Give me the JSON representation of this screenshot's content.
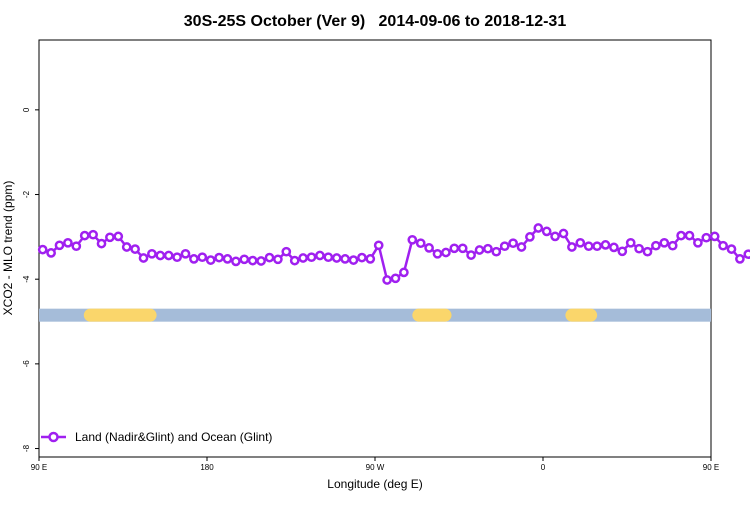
{
  "chart_data": {
    "type": "line",
    "title": "30S-25S October (Ver 9)   2014-09-06 to 2018-12-31",
    "xlabel": "Longitude (deg E)",
    "ylabel": "XCO2 - MLO trend (ppm)",
    "x_range": [
      90,
      450
    ],
    "y_range": [
      -8.2,
      1.65
    ],
    "x_ticks": [
      {
        "value": 90,
        "label": "90 E"
      },
      {
        "value": 180,
        "label": "180"
      },
      {
        "value": 270,
        "label": "90 W"
      },
      {
        "value": 360,
        "label": "0"
      },
      {
        "value": 450,
        "label": "90 E"
      },
      {
        "value": 540,
        "label": "180"
      }
    ],
    "x_ticks_note": "second 90 E occurs at data value 450",
    "y_ticks": [
      {
        "value": 0,
        "label": "0"
      },
      {
        "value": -2,
        "label": "-2"
      },
      {
        "value": -4,
        "label": "-4"
      },
      {
        "value": -6,
        "label": "-6"
      },
      {
        "value": -8,
        "label": "-8"
      }
    ],
    "legend": {
      "position": "bottom-left",
      "label": "Land (Nadir&Glint) and Ocean (Glint)"
    },
    "colors": {
      "series": "#a020f0",
      "ocean": "#a5bcd9",
      "land": "#fad66b"
    },
    "surface_band": {
      "y_value": -4.85,
      "land_segments": [
        [
          114,
          153
        ],
        [
          290,
          311
        ],
        [
          372,
          389
        ],
        [
          491,
          531
        ]
      ]
    },
    "series": [
      {
        "name": "Land (Nadir&Glint) and Ocean (Glint)",
        "points": [
          [
            92.0,
            -3.3
          ],
          [
            96.5,
            -3.38
          ],
          [
            101.0,
            -3.2
          ],
          [
            105.5,
            -3.14
          ],
          [
            110.0,
            -3.22
          ],
          [
            114.5,
            -2.97
          ],
          [
            119.0,
            -2.95
          ],
          [
            123.5,
            -3.16
          ],
          [
            128.0,
            -3.01
          ],
          [
            132.5,
            -2.99
          ],
          [
            137.0,
            -3.24
          ],
          [
            141.5,
            -3.29
          ],
          [
            146.0,
            -3.5
          ],
          [
            150.5,
            -3.4
          ],
          [
            155.0,
            -3.44
          ],
          [
            159.5,
            -3.44
          ],
          [
            164.0,
            -3.48
          ],
          [
            168.5,
            -3.4
          ],
          [
            173.0,
            -3.52
          ],
          [
            177.5,
            -3.48
          ],
          [
            182.0,
            -3.55
          ],
          [
            186.5,
            -3.49
          ],
          [
            191.0,
            -3.52
          ],
          [
            195.5,
            -3.58
          ],
          [
            200.0,
            -3.53
          ],
          [
            204.5,
            -3.56
          ],
          [
            209.0,
            -3.57
          ],
          [
            213.5,
            -3.49
          ],
          [
            218.0,
            -3.53
          ],
          [
            222.5,
            -3.35
          ],
          [
            227.0,
            -3.56
          ],
          [
            231.5,
            -3.5
          ],
          [
            236.0,
            -3.48
          ],
          [
            240.5,
            -3.44
          ],
          [
            245.0,
            -3.48
          ],
          [
            249.5,
            -3.5
          ],
          [
            254.0,
            -3.52
          ],
          [
            258.5,
            -3.55
          ],
          [
            263.0,
            -3.49
          ],
          [
            267.5,
            -3.52
          ],
          [
            272.0,
            -3.2
          ],
          [
            276.5,
            -4.02
          ],
          [
            281.0,
            -3.98
          ],
          [
            285.5,
            -3.84
          ],
          [
            290.0,
            -3.07
          ],
          [
            294.5,
            -3.15
          ],
          [
            299.0,
            -3.26
          ],
          [
            303.5,
            -3.4
          ],
          [
            308.0,
            -3.37
          ],
          [
            312.5,
            -3.27
          ],
          [
            317.0,
            -3.27
          ],
          [
            321.5,
            -3.43
          ],
          [
            326.0,
            -3.31
          ],
          [
            330.5,
            -3.28
          ],
          [
            335.0,
            -3.35
          ],
          [
            339.5,
            -3.22
          ],
          [
            344.0,
            -3.15
          ],
          [
            348.5,
            -3.24
          ],
          [
            353.0,
            -3.0
          ],
          [
            357.5,
            -2.79
          ],
          [
            362.0,
            -2.87
          ],
          [
            366.5,
            -2.99
          ],
          [
            371.0,
            -2.92
          ],
          [
            375.5,
            -3.24
          ],
          [
            380.0,
            -3.14
          ],
          [
            384.5,
            -3.22
          ],
          [
            389.0,
            -3.22
          ],
          [
            393.5,
            -3.19
          ],
          [
            398.0,
            -3.25
          ],
          [
            402.5,
            -3.34
          ],
          [
            407.0,
            -3.14
          ],
          [
            411.5,
            -3.28
          ],
          [
            416.0,
            -3.35
          ],
          [
            420.5,
            -3.21
          ],
          [
            425.0,
            -3.14
          ],
          [
            429.5,
            -3.21
          ],
          [
            434.0,
            -2.97
          ],
          [
            438.5,
            -2.97
          ],
          [
            443.0,
            -3.14
          ],
          [
            447.5,
            -3.02
          ],
          [
            452.0,
            -2.99
          ],
          [
            456.5,
            -3.21
          ],
          [
            461.0,
            -3.29
          ],
          [
            465.5,
            -3.52
          ],
          [
            470.0,
            -3.41
          ],
          [
            474.5,
            -3.46
          ],
          [
            479.0,
            -3.45
          ],
          [
            483.5,
            -3.51
          ],
          [
            488.0,
            -3.42
          ]
        ]
      }
    ]
  }
}
